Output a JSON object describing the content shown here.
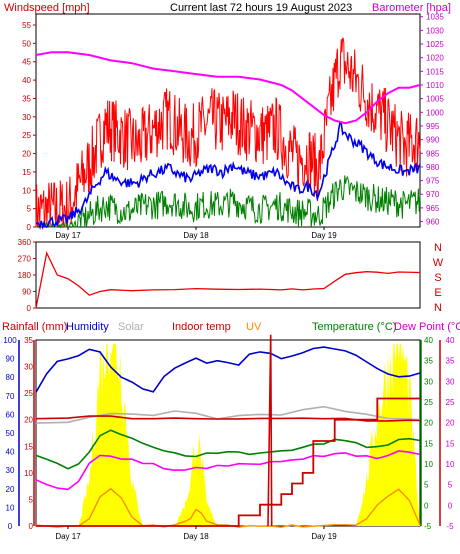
{
  "header": {
    "windspeed_label": "Windspeed [mph]",
    "title": "Current last 72 hours 19 August 2023",
    "barometer_label": "Barometer [hpa]"
  },
  "legend_bottom": {
    "rainfall": "Rainfall (mm)",
    "humidity": "Humidity",
    "solar": "Solar",
    "indoor_temp": "Indoor temp",
    "uv": "UV",
    "temperature": "Temperature (°C)",
    "dew_point": "Dew Point (°C)"
  },
  "colors": {
    "gust": "#ff0000",
    "avg_wind": "#0000ee",
    "wind_low": "#008000",
    "barometer": "#ff00ff",
    "rain_axis": "#ff0000",
    "humidity": "#0000cc",
    "solar": "#b0b0b0",
    "indoor_temp": "#cc0000",
    "uv": "#ff8c00",
    "temperature": "#008000",
    "dew_point": "#ff00ff",
    "solar_fill": "#ffff00",
    "frame": "#000000"
  },
  "chart_data": [
    {
      "type": "line",
      "name": "wind_and_pressure",
      "x_tick_labels": [
        "Day 17",
        "Day 18",
        "Day 19"
      ],
      "y_left_ticks": [
        "0",
        "5",
        "10",
        "15",
        "20",
        "25",
        "30",
        "35",
        "40",
        "45",
        "50",
        "55"
      ],
      "y_right_ticks": [
        "960",
        "965",
        "970",
        "975",
        "980",
        "985",
        "990",
        "995",
        "1000",
        "1005",
        "1010",
        "1015",
        "1020",
        "1025",
        "1030",
        "1035"
      ],
      "ylim_left": [
        0,
        58
      ],
      "ylim_right": [
        958,
        1036
      ],
      "x_range_hours": [
        0,
        72
      ],
      "series": [
        {
          "key": "gust",
          "axis": "left",
          "x": [
            0,
            6,
            9,
            11,
            13,
            15,
            17,
            19,
            21,
            23,
            25,
            27,
            29,
            31,
            33,
            35,
            37,
            39,
            41,
            43,
            45,
            47,
            49,
            51,
            53,
            55,
            57,
            59,
            61,
            63,
            65,
            67,
            69,
            72
          ],
          "values": [
            4,
            5,
            14,
            20,
            28,
            26,
            24,
            22,
            25,
            28,
            30,
            26,
            24,
            27,
            29,
            28,
            30,
            27,
            26,
            25,
            27,
            22,
            18,
            20,
            15,
            32,
            46,
            42,
            38,
            33,
            30,
            26,
            22,
            24
          ]
        },
        {
          "key": "avg_wind",
          "axis": "left",
          "x": [
            0,
            6,
            9,
            11,
            13,
            15,
            17,
            19,
            21,
            23,
            25,
            27,
            29,
            31,
            33,
            35,
            37,
            39,
            41,
            43,
            45,
            47,
            49,
            51,
            53,
            55,
            57,
            59,
            61,
            63,
            65,
            67,
            69,
            72
          ],
          "values": [
            1,
            2,
            6,
            11,
            15,
            13,
            12,
            12,
            14,
            15,
            16,
            14,
            13,
            15,
            16,
            15,
            17,
            15,
            14,
            14,
            15,
            12,
            10,
            11,
            9,
            18,
            27,
            24,
            22,
            19,
            17,
            16,
            15,
            16
          ]
        },
        {
          "key": "wind_low",
          "axis": "left",
          "x": [
            0,
            6,
            9,
            11,
            13,
            15,
            17,
            19,
            21,
            23,
            25,
            27,
            29,
            31,
            33,
            35,
            37,
            39,
            41,
            43,
            45,
            47,
            49,
            51,
            53,
            55,
            57,
            59,
            61,
            63,
            65,
            67,
            69,
            72
          ],
          "values": [
            0,
            0,
            2,
            4,
            6,
            5,
            4,
            5,
            6,
            6,
            7,
            6,
            5,
            6,
            6,
            6,
            7,
            6,
            5,
            5,
            6,
            5,
            4,
            4,
            3,
            7,
            11,
            10,
            9,
            8,
            7,
            7,
            6,
            7
          ]
        },
        {
          "key": "barometer",
          "axis": "right",
          "x": [
            0,
            3,
            6,
            10,
            14,
            18,
            22,
            26,
            30,
            34,
            38,
            42,
            46,
            48,
            50,
            52,
            54,
            56,
            58,
            60,
            62,
            64,
            66,
            68,
            70,
            72
          ],
          "values": [
            1021,
            1022,
            1022,
            1021,
            1019,
            1018,
            1016,
            1015,
            1014,
            1013,
            1013,
            1012,
            1010,
            1008,
            1005,
            1002,
            999,
            997,
            996,
            997,
            1000,
            1004,
            1007,
            1009,
            1009,
            1010
          ]
        }
      ]
    },
    {
      "type": "line",
      "name": "wind_direction",
      "y_ticks": [
        "360",
        "270",
        "180",
        "90",
        "0"
      ],
      "y_compass": [
        "N",
        "W",
        "S",
        "E",
        "N"
      ],
      "ylim": [
        0,
        360
      ],
      "series": [
        {
          "key": "direction",
          "x": [
            0,
            2,
            3,
            4,
            6,
            8,
            10,
            12,
            14,
            18,
            22,
            26,
            30,
            34,
            38,
            42,
            46,
            48,
            50,
            52,
            54,
            56,
            58,
            60,
            62,
            64,
            66,
            68,
            72
          ],
          "values": [
            0,
            300,
            240,
            180,
            160,
            120,
            70,
            90,
            100,
            95,
            100,
            98,
            102,
            100,
            98,
            100,
            100,
            105,
            102,
            104,
            110,
            150,
            180,
            190,
            195,
            192,
            190,
            195,
            193
          ]
        }
      ]
    },
    {
      "type": "line",
      "name": "rain_humidity_temperature",
      "x_tick_labels": [
        "Day 17",
        "Day 18",
        "Day 19"
      ],
      "y_humidity_ticks": [
        "0",
        "10",
        "20",
        "30",
        "40",
        "50",
        "60",
        "70",
        "80",
        "90",
        "100"
      ],
      "y_rain_ticks": [
        "0",
        "5",
        "10",
        "15",
        "20",
        "25",
        "30",
        "35"
      ],
      "y_temp_ticks": [
        "-5",
        "0",
        "5",
        "10",
        "15",
        "20",
        "25",
        "30",
        "35",
        "40"
      ],
      "y_dew_ticks": [
        "-5",
        "0",
        "5",
        "10",
        "15",
        "20",
        "25",
        "30",
        "35",
        "40"
      ],
      "ylim_humidity": [
        0,
        100
      ],
      "ylim_temp": [
        -5,
        40
      ],
      "series": [
        {
          "key": "humidity",
          "axis": "humidity",
          "x": [
            0,
            2,
            4,
            6,
            8,
            10,
            12,
            14,
            16,
            18,
            20,
            22,
            24,
            26,
            28,
            30,
            32,
            34,
            36,
            38,
            40,
            42,
            44,
            46,
            48,
            50,
            52,
            54,
            56,
            58,
            60,
            62,
            64,
            66,
            68,
            70,
            72
          ],
          "values": [
            72,
            82,
            88,
            90,
            92,
            95,
            93,
            85,
            80,
            77,
            74,
            72,
            80,
            85,
            88,
            90,
            87,
            89,
            88,
            86,
            92,
            94,
            93,
            90,
            91,
            93,
            95,
            96,
            95,
            94,
            92,
            88,
            85,
            82,
            80,
            81,
            82
          ]
        },
        {
          "key": "solar",
          "axis": "temp",
          "x": [
            0,
            6,
            10,
            14,
            18,
            22,
            26,
            30,
            34,
            38,
            42,
            46,
            50,
            54,
            58,
            62,
            66,
            70,
            72
          ],
          "values": [
            20,
            20,
            21,
            22,
            22,
            22,
            23,
            22,
            21,
            22,
            22,
            22,
            23,
            24,
            23,
            22,
            21,
            21,
            21
          ]
        },
        {
          "key": "indoor_temp",
          "axis": "temp",
          "x": [
            0,
            6,
            10,
            14,
            18,
            22,
            26,
            30,
            34,
            38,
            42,
            46,
            50,
            54,
            58,
            62,
            66,
            70,
            72
          ],
          "values": [
            21,
            21,
            21.5,
            21.5,
            21,
            21,
            21,
            21,
            21,
            21,
            21,
            21,
            21,
            21,
            21,
            20.5,
            20.5,
            20.5,
            20.5
          ]
        },
        {
          "key": "temperature",
          "axis": "temp",
          "x": [
            0,
            2,
            4,
            6,
            8,
            10,
            12,
            14,
            16,
            18,
            20,
            22,
            24,
            26,
            28,
            30,
            32,
            34,
            36,
            38,
            40,
            42,
            44,
            46,
            48,
            50,
            52,
            54,
            56,
            58,
            60,
            62,
            64,
            66,
            68,
            70,
            72
          ],
          "values": [
            12,
            11,
            10,
            9,
            10,
            13,
            17,
            18,
            17,
            16,
            15,
            14,
            13,
            12.5,
            12,
            12,
            12.5,
            12.5,
            13,
            13,
            12.5,
            12.5,
            13,
            13,
            13.5,
            14,
            15,
            15,
            16,
            15.5,
            15,
            14,
            14,
            14.5,
            16,
            16,
            15.5
          ]
        },
        {
          "key": "dew_point",
          "axis": "temp",
          "x": [
            0,
            2,
            4,
            6,
            8,
            10,
            12,
            14,
            16,
            18,
            20,
            22,
            24,
            26,
            28,
            30,
            32,
            34,
            36,
            38,
            40,
            42,
            44,
            46,
            48,
            50,
            52,
            54,
            56,
            58,
            60,
            62,
            64,
            66,
            68,
            70,
            72
          ],
          "values": [
            6,
            5,
            4,
            4,
            6,
            10,
            12,
            12,
            11,
            11,
            10,
            10,
            9,
            8.5,
            8.5,
            9,
            9,
            9.5,
            9.5,
            10,
            10,
            10,
            10.5,
            10.5,
            11,
            11,
            12,
            12,
            12.5,
            12.5,
            12,
            12,
            11.5,
            12,
            13,
            13,
            12.5
          ]
        },
        {
          "key": "uv",
          "axis": "temp",
          "x": [
            0,
            4,
            6,
            8,
            10,
            12,
            14,
            16,
            18,
            20,
            22,
            24,
            26,
            28,
            29,
            30,
            31,
            32,
            34,
            36,
            38,
            40,
            42,
            44,
            46,
            48,
            50,
            52,
            54,
            56,
            58,
            60,
            62,
            64,
            66,
            68,
            70,
            72
          ],
          "values": [
            -5,
            -5,
            -5,
            -5,
            -3,
            2,
            4,
            2,
            -3,
            -5,
            -5,
            -5,
            -5,
            -4,
            -3,
            -1,
            -2,
            -4,
            -5,
            -5,
            -5,
            -5,
            -5,
            -5,
            -5,
            -5,
            -5,
            -5,
            -5,
            -5,
            -5,
            -5,
            -3,
            0,
            2,
            4,
            1,
            -5
          ]
        },
        {
          "key": "rainfall",
          "axis": "humidity",
          "x": [
            0,
            6,
            28,
            32,
            34,
            36,
            38,
            40,
            42,
            43,
            44,
            46,
            48,
            50,
            52,
            54,
            56,
            58,
            60,
            62,
            64,
            72
          ],
          "values": [
            0,
            0,
            0,
            0,
            0,
            0,
            2,
            2,
            4,
            4,
            4,
            6,
            8,
            10,
            16,
            16,
            20,
            20,
            20,
            20,
            24,
            24
          ]
        },
        {
          "key": "rain_rate_spike",
          "axis": "humidity",
          "x": [
            43.5,
            44.0,
            44.2
          ],
          "values": [
            0,
            36,
            0
          ]
        }
      ]
    }
  ]
}
